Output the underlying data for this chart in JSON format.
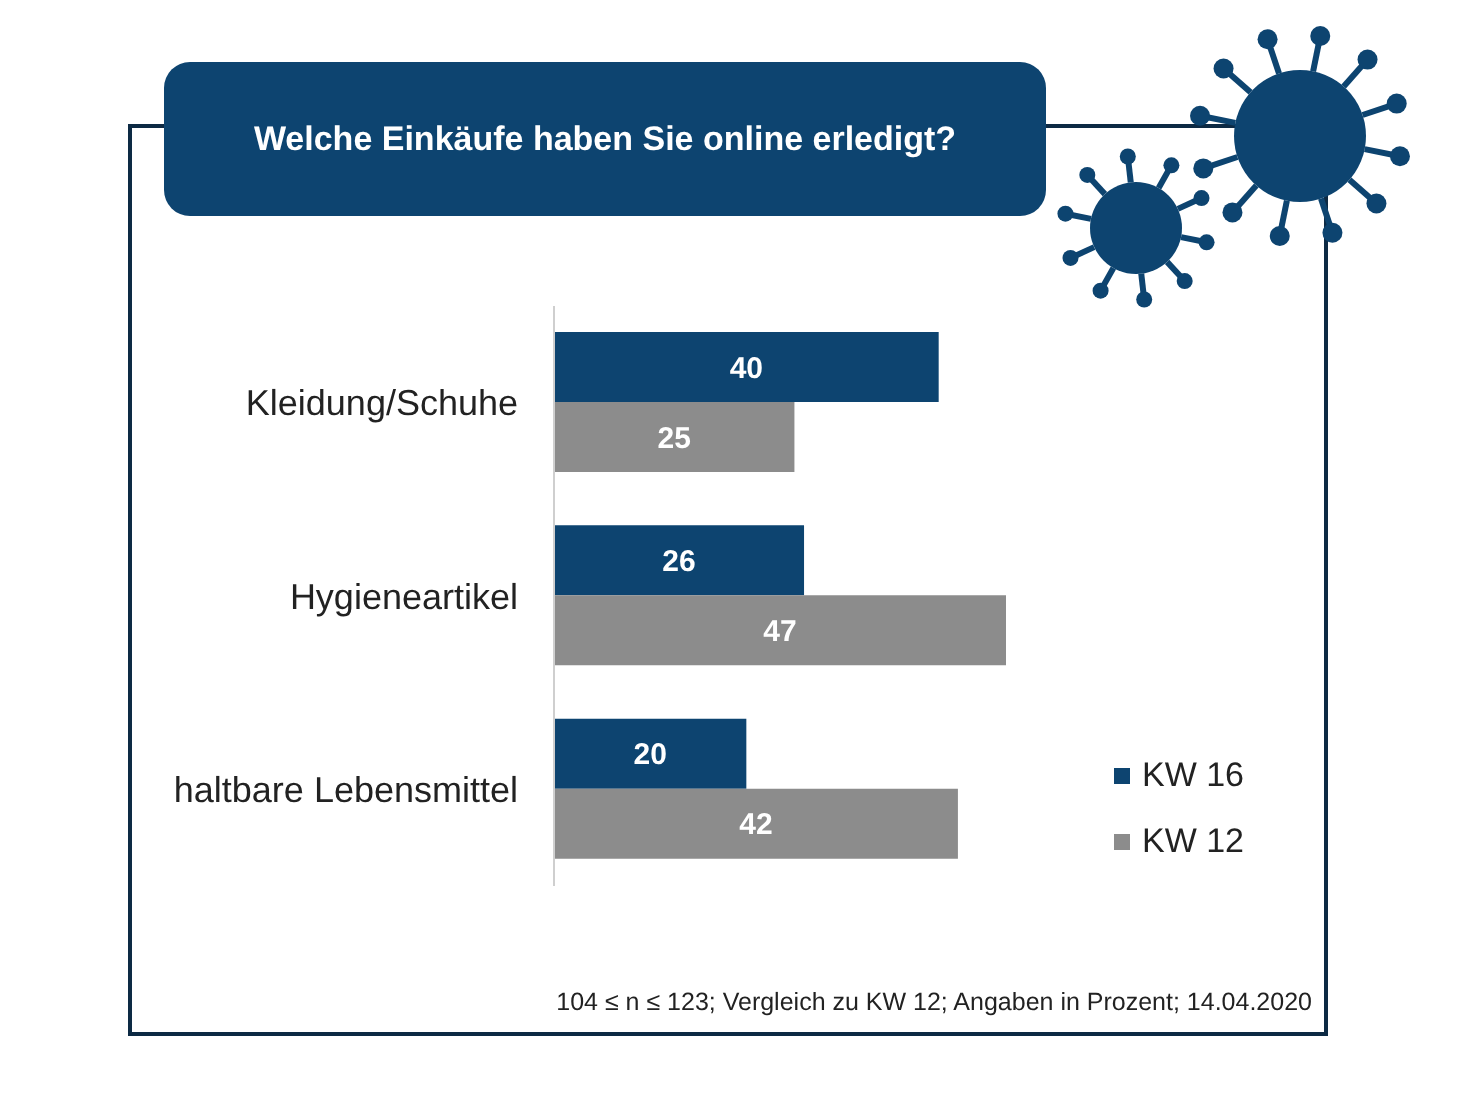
{
  "chart_data": {
    "type": "bar",
    "orientation": "horizontal",
    "title": "Welche Einkäufe haben Sie online erledigt?",
    "categories": [
      "Kleidung/Schuhe",
      "Hygieneartikel",
      "haltbare Lebensmittel"
    ],
    "series": [
      {
        "name": "KW 16",
        "color": "#0d4470",
        "values": [
          40,
          26,
          20
        ]
      },
      {
        "name": "KW 12",
        "color": "#8c8c8c",
        "values": [
          25,
          47,
          42
        ]
      }
    ],
    "data_labels": true,
    "legend": "bottom right",
    "tick_labels": "y",
    "annotations": [
      "104 ≤ n ≤ 123; Vergleich zu KW 12; Angaben in Prozent; 14.04.2020"
    ]
  }
}
